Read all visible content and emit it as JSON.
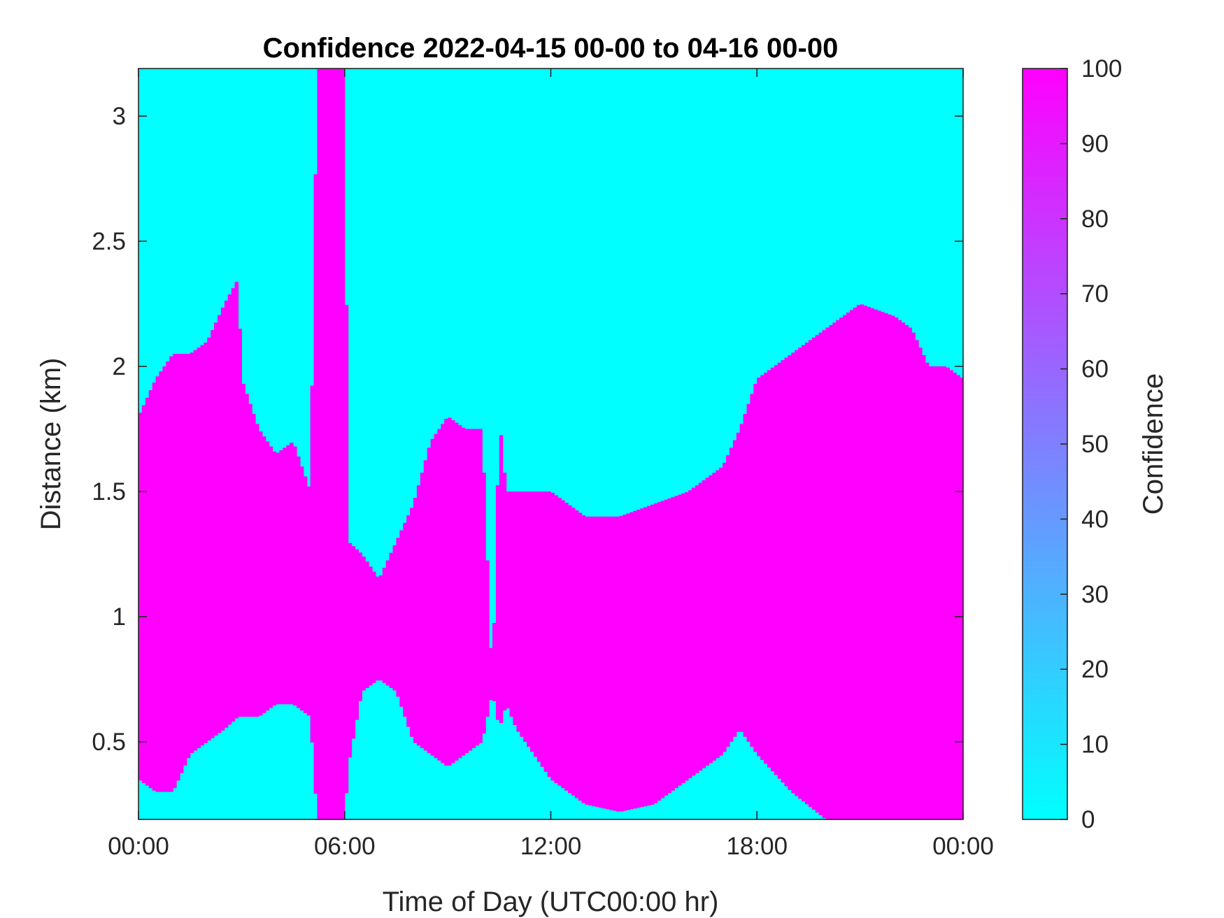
{
  "chart_data": {
    "type": "heatmap",
    "title": "Confidence 2022-04-15 00-00 to 04-16 00-00",
    "xlabel": "Time of Day (UTC00:00 hr)",
    "ylabel": "Distance (km)",
    "x_unit": "hours",
    "xlim": [
      0,
      24
    ],
    "ylim": [
      0.19,
      3.19
    ],
    "x_ticks": [
      0,
      6,
      12,
      18,
      24
    ],
    "x_tick_labels": [
      "00:00",
      "06:00",
      "12:00",
      "18:00",
      "00:00"
    ],
    "y_ticks": [
      0.5,
      1,
      1.5,
      2,
      2.5,
      3
    ],
    "y_tick_labels": [
      "0.5",
      "1",
      "1.5",
      "2",
      "2.5",
      "3"
    ],
    "colorbar": {
      "label": "Confidence",
      "range": [
        0,
        100
      ],
      "ticks": [
        0,
        10,
        20,
        30,
        40,
        50,
        60,
        70,
        80,
        90,
        100
      ],
      "tick_labels": [
        "0",
        "10",
        "20",
        "30",
        "40",
        "50",
        "60",
        "70",
        "80",
        "90",
        "100"
      ],
      "colormap": "cool",
      "low_color": "#00ffff",
      "high_color": "#ff00ff"
    },
    "values_present": [
      0,
      100
    ],
    "high_confidence_upper_boundary_km": {
      "time_hr": [
        0.0,
        0.5,
        1.0,
        1.5,
        2.0,
        2.5,
        2.9,
        3.0,
        3.5,
        4.0,
        4.5,
        5.0,
        5.2,
        5.5,
        6.0,
        6.1,
        6.5,
        7.0,
        7.5,
        8.0,
        8.5,
        9.0,
        9.5,
        10.0,
        10.3,
        10.5,
        10.7,
        11.0,
        12.0,
        13.0,
        14.0,
        15.0,
        16.0,
        17.0,
        17.5,
        18.0,
        19.0,
        20.0,
        21.0,
        22.0,
        22.5,
        23.0,
        23.5,
        24.0
      ],
      "distance_km": [
        1.8,
        1.95,
        2.05,
        2.05,
        2.1,
        2.25,
        2.35,
        1.95,
        1.75,
        1.65,
        1.7,
        1.5,
        3.19,
        3.19,
        3.19,
        1.3,
        1.25,
        1.15,
        1.3,
        1.45,
        1.7,
        1.8,
        1.75,
        1.75,
        0.7,
        1.8,
        1.5,
        1.5,
        1.5,
        1.4,
        1.4,
        1.45,
        1.5,
        1.6,
        1.75,
        1.95,
        2.05,
        2.15,
        2.25,
        2.2,
        2.15,
        2.0,
        2.0,
        1.95
      ]
    },
    "high_confidence_lower_boundary_km": {
      "time_hr": [
        0.0,
        0.5,
        1.0,
        1.5,
        2.0,
        2.5,
        2.9,
        3.0,
        3.5,
        4.0,
        4.5,
        5.0,
        5.2,
        5.5,
        6.0,
        6.1,
        6.5,
        7.0,
        7.5,
        8.0,
        8.5,
        9.0,
        9.5,
        10.0,
        10.3,
        10.5,
        10.7,
        11.0,
        12.0,
        13.0,
        14.0,
        15.0,
        16.0,
        17.0,
        17.5,
        18.0,
        19.0,
        20.0,
        21.0,
        22.0,
        22.5,
        23.0,
        23.5,
        24.0
      ],
      "distance_km": [
        0.35,
        0.3,
        0.3,
        0.45,
        0.5,
        0.55,
        0.6,
        0.6,
        0.6,
        0.65,
        0.65,
        0.6,
        0.19,
        0.19,
        0.19,
        0.4,
        0.7,
        0.75,
        0.7,
        0.5,
        0.45,
        0.4,
        0.45,
        0.5,
        0.7,
        0.55,
        0.65,
        0.55,
        0.35,
        0.25,
        0.22,
        0.25,
        0.35,
        0.45,
        0.55,
        0.45,
        0.3,
        0.19,
        0.19,
        0.19,
        0.19,
        0.19,
        0.19,
        0.19
      ]
    },
    "grid": false
  }
}
